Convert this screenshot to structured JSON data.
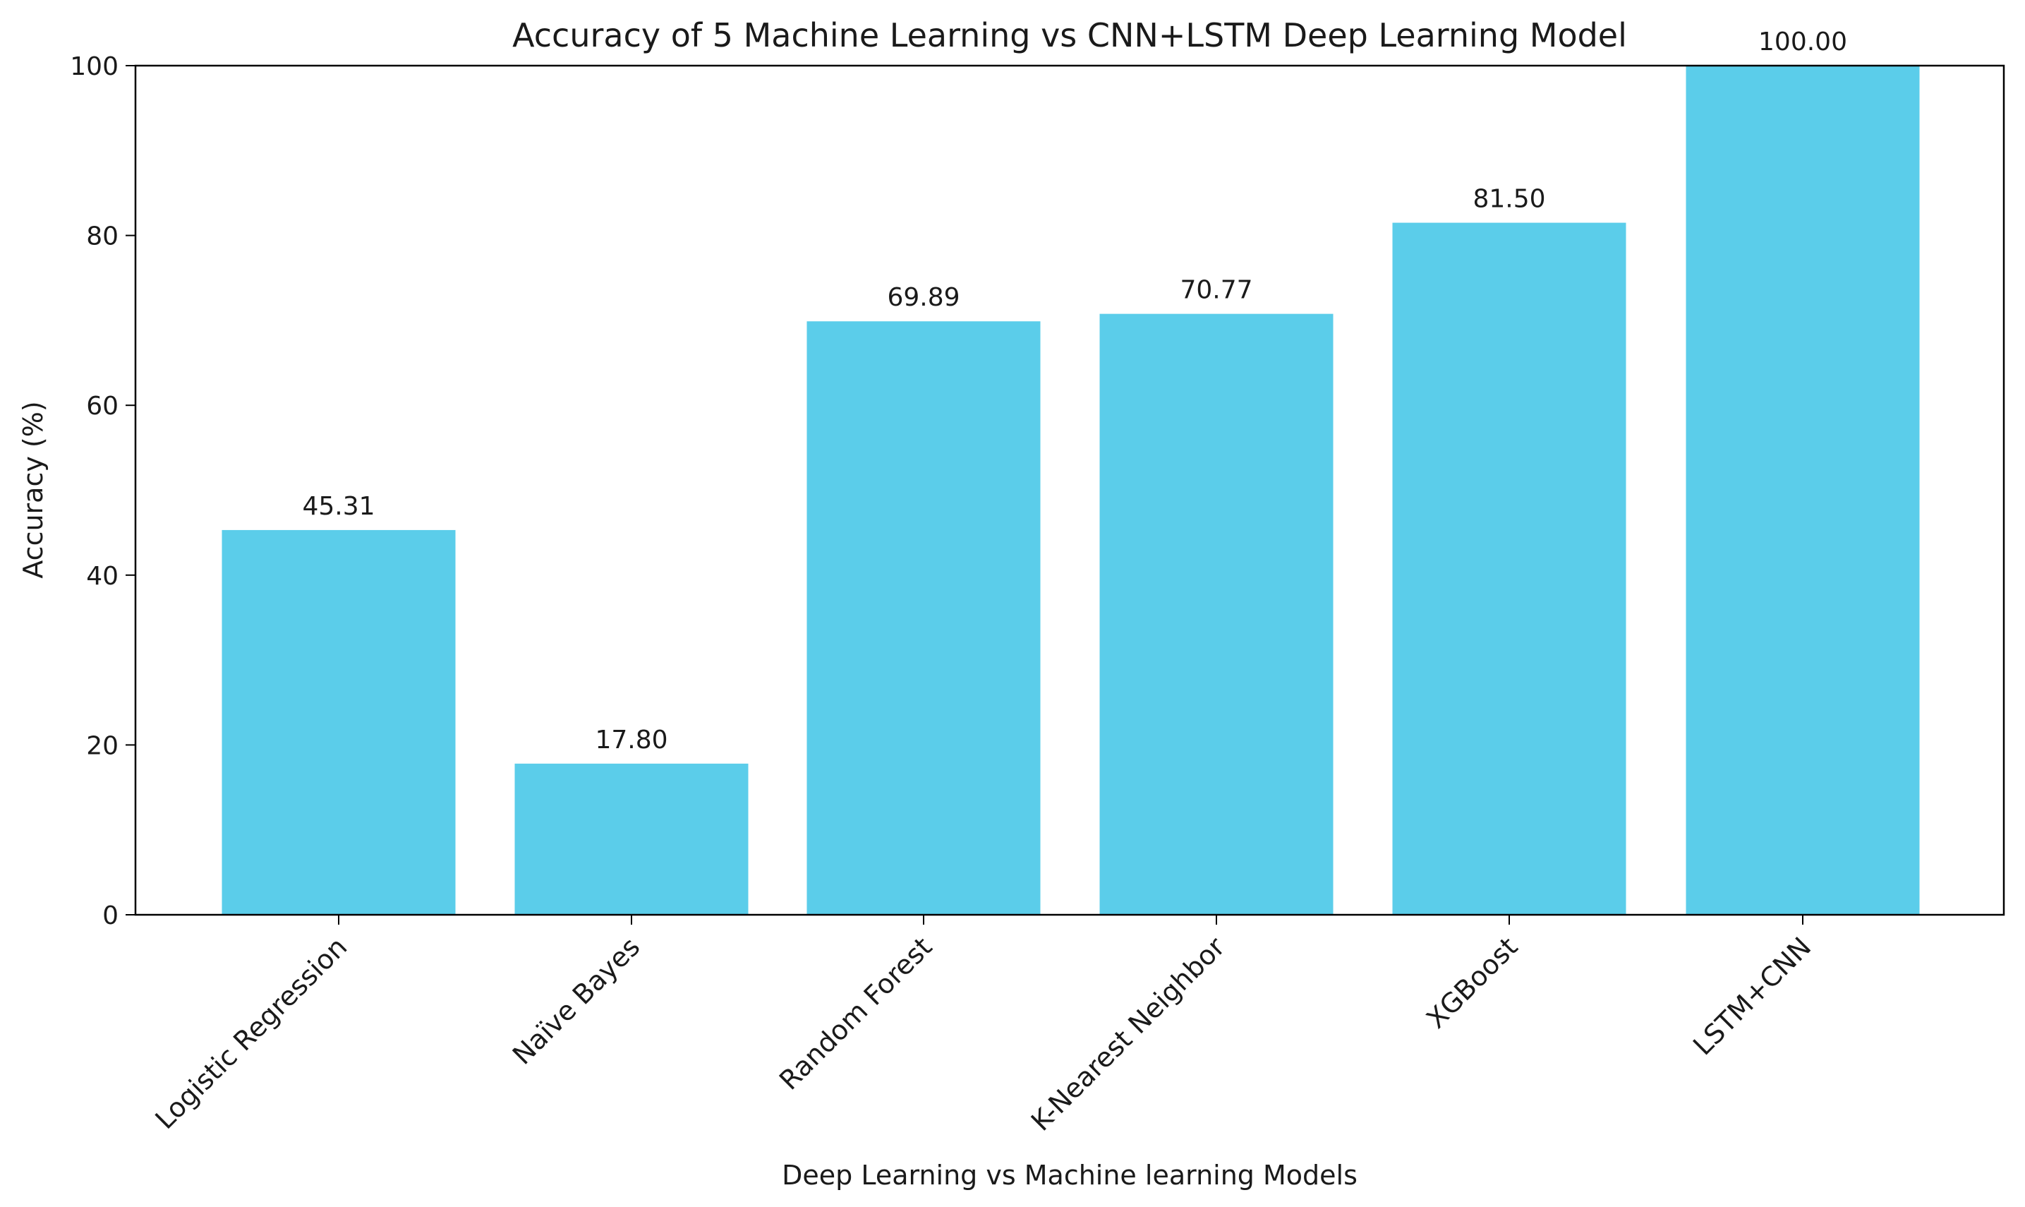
{
  "chart_data": {
    "type": "bar",
    "title": "Accuracy of 5 Machine Learning vs CNN+LSTM Deep Learning Model",
    "xlabel": "Deep Learning vs Machine learning Models",
    "ylabel": "Accuracy (%)",
    "ylim": [
      0,
      100
    ],
    "yticks": [
      0,
      20,
      40,
      60,
      80,
      100
    ],
    "categories": [
      "Logistic Regression",
      "Naïve Bayes",
      "Random Forest",
      "K-Nearest Neighbor",
      "XGBoost",
      "LSTM+CNN"
    ],
    "values": [
      45.31,
      17.8,
      69.89,
      70.77,
      81.5,
      100.0
    ],
    "value_labels": [
      "45.31",
      "17.80",
      "69.89",
      "70.77",
      "81.50",
      "100.00"
    ],
    "bar_color": "#5bcdea",
    "grid": false,
    "legend": null,
    "xtick_rotation": -45
  }
}
